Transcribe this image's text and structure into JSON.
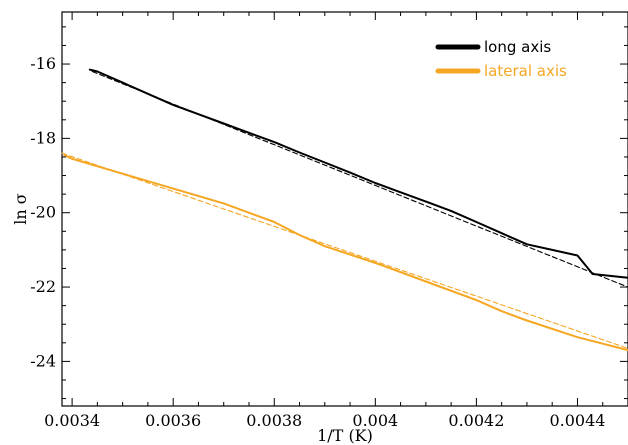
{
  "chart_data": {
    "type": "line",
    "xlabel": "1/T (K)",
    "ylabel": "ln σ",
    "xlim": [
      0.00338,
      0.0045
    ],
    "ylim": [
      -25.2,
      -14.6
    ],
    "xticks": [
      0.0034,
      0.0036,
      0.0038,
      0.004,
      0.0042,
      0.0044
    ],
    "xtick_labels": [
      "0.0034",
      "0.0036",
      "0.0038",
      "0.004",
      "0.0042",
      "0.0044"
    ],
    "yticks": [
      -24,
      -22,
      -20,
      -18,
      -16
    ],
    "ytick_labels": [
      "-24",
      "-22",
      "-20",
      "-18",
      "-16"
    ],
    "legend": {
      "position": "top-right",
      "entries": [
        "long axis",
        "lateral axis"
      ]
    },
    "grid": false,
    "series": [
      {
        "name": "long axis",
        "color": "#000000",
        "style": "solid",
        "x": [
          0.003435,
          0.00345,
          0.0035,
          0.00355,
          0.0036,
          0.00365,
          0.0037,
          0.00375,
          0.0038,
          0.00385,
          0.0039,
          0.00395,
          0.004,
          0.00405,
          0.0041,
          0.00415,
          0.0042,
          0.00425,
          0.0043,
          0.00435,
          0.0044,
          0.00443,
          0.0045
        ],
        "y": [
          -16.15,
          -16.2,
          -16.5,
          -16.8,
          -17.1,
          -17.35,
          -17.6,
          -17.85,
          -18.1,
          -18.38,
          -18.65,
          -18.92,
          -19.2,
          -19.45,
          -19.7,
          -19.95,
          -20.25,
          -20.55,
          -20.85,
          -21.0,
          -21.15,
          -21.65,
          -21.75
        ]
      },
      {
        "name": "lateral axis",
        "color": "#f5a623",
        "style": "solid",
        "x": [
          0.003385,
          0.0034,
          0.0035,
          0.0036,
          0.0037,
          0.0038,
          0.00385,
          0.0039,
          0.004,
          0.0041,
          0.0042,
          0.00425,
          0.0043,
          0.0044,
          0.0045
        ],
        "y": [
          -18.45,
          -18.55,
          -18.95,
          -19.35,
          -19.75,
          -20.25,
          -20.6,
          -20.9,
          -21.35,
          -21.85,
          -22.35,
          -22.65,
          -22.9,
          -23.35,
          -23.7
        ]
      },
      {
        "color": "#000000",
        "style": "dashed",
        "x": [
          0.00344,
          0.0045
        ],
        "y": [
          -16.2,
          -22.0
        ]
      },
      {
        "color": "#f5a623",
        "style": "dashed",
        "x": [
          0.00338,
          0.0045
        ],
        "y": [
          -18.4,
          -23.65
        ]
      }
    ]
  }
}
